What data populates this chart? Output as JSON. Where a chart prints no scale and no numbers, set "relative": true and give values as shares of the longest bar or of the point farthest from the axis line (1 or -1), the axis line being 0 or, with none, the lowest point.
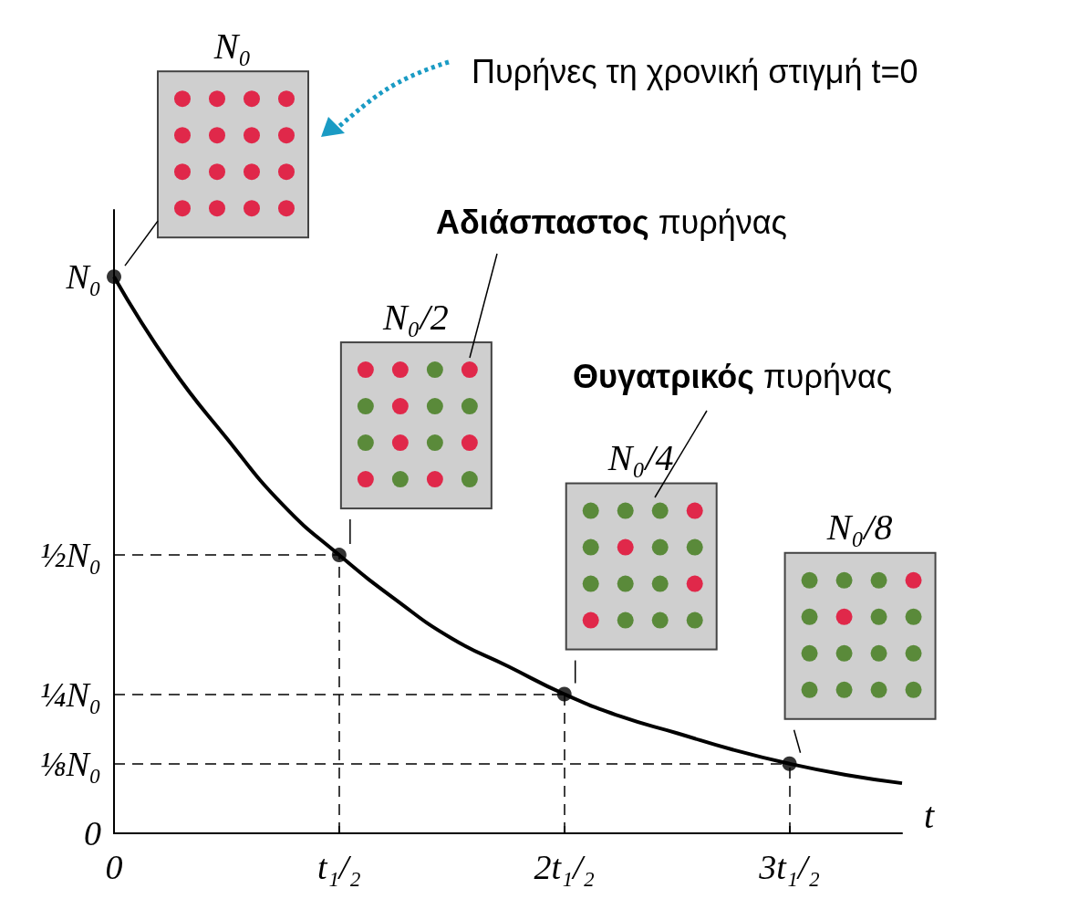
{
  "chart_data": {
    "type": "line",
    "xlabel": "t",
    "relative": true,
    "categories": [
      "0",
      null,
      null,
      null,
      "t₁/₂",
      null,
      null,
      null,
      "2t₁/₂",
      null,
      null,
      null,
      "3t₁/₂",
      null,
      null
    ],
    "series": [
      {
        "color": "#000000",
        "values": [
          1,
          0.84,
          0.71,
          0.59,
          0.5,
          0.42,
          0.35,
          0.3,
          0.25,
          0.21,
          0.18,
          0.15,
          0.125,
          0.105,
          0.09
        ]
      },
      {
        "type": "scatter",
        "color": "#000000",
        "x": [
          "0",
          "t₁/₂",
          "2t₁/₂",
          "3t₁/₂"
        ],
        "values": [
          1,
          0.5,
          0.25,
          0.125
        ]
      }
    ],
    "ref_lines": [
      {
        "axis": "y",
        "value": 0.5,
        "line_style": "dashed"
      },
      {
        "axis": "y",
        "value": 0.25,
        "line_style": "dashed"
      },
      {
        "axis": "y",
        "value": 0.125,
        "line_style": "dashed"
      }
    ],
    "annotations": [
      "N₀",
      "N₀/2",
      "N₀/4",
      "N₀/8",
      "Πυρήνες τη χρονική στιγμή t=0",
      "Αδιάσπαστος πυρήνας",
      "Θυγατρικός πυρήνας",
      "N₀",
      "½N₀",
      "¼N₀",
      "⅛N₀",
      "0"
    ]
  }
}
